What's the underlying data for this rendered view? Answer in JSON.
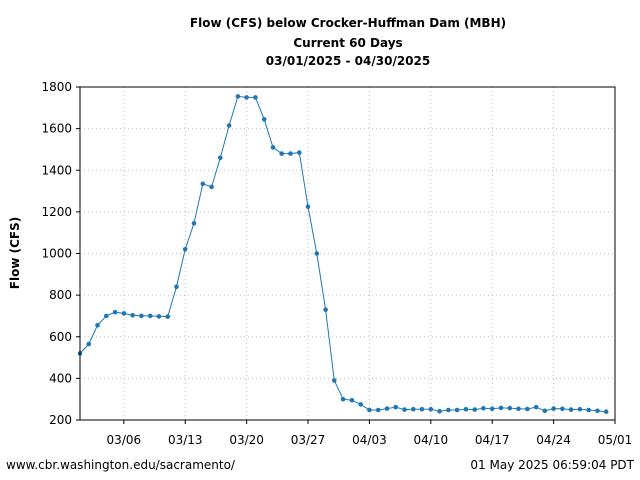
{
  "chart_data": {
    "type": "line",
    "title_lines": [
      "Flow (CFS) below Crocker-Huffman Dam (MBH)",
      "Current 60 Days",
      "03/01/2025 - 04/30/2025"
    ],
    "xlabel": "",
    "ylabel": "Flow (CFS)",
    "ylim": [
      200,
      1800
    ],
    "yticks": [
      200,
      400,
      600,
      800,
      1000,
      1200,
      1400,
      1600,
      1800
    ],
    "xlim": [
      "2025-03-01",
      "2025-05-01"
    ],
    "xticks": [
      {
        "date": "2025-03-06",
        "label": "03/06"
      },
      {
        "date": "2025-03-13",
        "label": "03/13"
      },
      {
        "date": "2025-03-20",
        "label": "03/20"
      },
      {
        "date": "2025-03-27",
        "label": "03/27"
      },
      {
        "date": "2025-04-03",
        "label": "04/03"
      },
      {
        "date": "2025-04-10",
        "label": "04/10"
      },
      {
        "date": "2025-04-17",
        "label": "04/17"
      },
      {
        "date": "2025-04-24",
        "label": "04/24"
      },
      {
        "date": "2025-05-01",
        "label": "05/01"
      }
    ],
    "grid": true,
    "line_color": "#1f77b4",
    "series": [
      {
        "x": [
          "2025-03-01",
          "2025-03-02",
          "2025-03-03",
          "2025-03-04",
          "2025-03-05",
          "2025-03-06",
          "2025-03-07",
          "2025-03-08",
          "2025-03-09",
          "2025-03-10",
          "2025-03-11",
          "2025-03-12",
          "2025-03-13",
          "2025-03-14",
          "2025-03-15",
          "2025-03-16",
          "2025-03-17",
          "2025-03-18",
          "2025-03-19",
          "2025-03-20",
          "2025-03-21",
          "2025-03-22",
          "2025-03-23",
          "2025-03-24",
          "2025-03-25",
          "2025-03-26",
          "2025-03-27",
          "2025-03-28",
          "2025-03-29",
          "2025-03-30",
          "2025-03-31",
          "2025-04-01",
          "2025-04-02",
          "2025-04-03",
          "2025-04-04",
          "2025-04-05",
          "2025-04-06",
          "2025-04-07",
          "2025-04-08",
          "2025-04-09",
          "2025-04-10",
          "2025-04-11",
          "2025-04-12",
          "2025-04-13",
          "2025-04-14",
          "2025-04-15",
          "2025-04-16",
          "2025-04-17",
          "2025-04-18",
          "2025-04-19",
          "2025-04-20",
          "2025-04-21",
          "2025-04-22",
          "2025-04-23",
          "2025-04-24",
          "2025-04-25",
          "2025-04-26",
          "2025-04-27",
          "2025-04-28",
          "2025-04-29",
          "2025-04-30"
        ],
        "values": [
          520,
          565,
          655,
          700,
          718,
          712,
          703,
          700,
          700,
          698,
          697,
          840,
          1020,
          1145,
          1335,
          1320,
          1460,
          1615,
          1755,
          1750,
          1750,
          1645,
          1510,
          1480,
          1480,
          1485,
          1225,
          1000,
          730,
          390,
          300,
          295,
          275,
          248,
          248,
          255,
          262,
          250,
          252,
          252,
          252,
          242,
          248,
          248,
          252,
          250,
          256,
          254,
          258,
          257,
          254,
          253,
          262,
          244,
          255,
          254,
          250,
          252,
          248,
          244,
          240
        ]
      }
    ]
  },
  "footer": {
    "url": "www.cbr.washington.edu/sacramento/",
    "timestamp": "01 May 2025 06:59:04 PDT"
  }
}
